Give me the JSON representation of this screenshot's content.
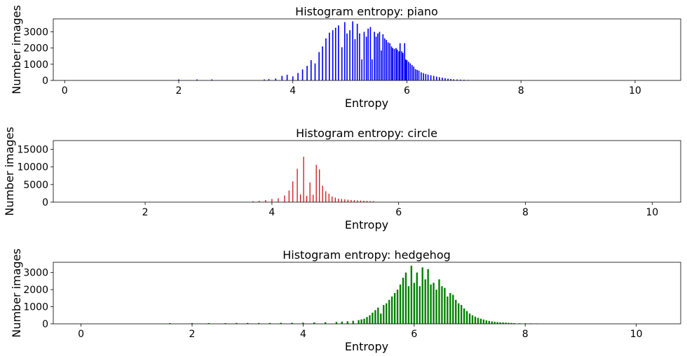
{
  "figure": {
    "colors": {
      "piano": "#0000ff",
      "circle": "#cc0000",
      "hedgehog": "#008000"
    }
  },
  "chart_data": [
    {
      "type": "bar",
      "title": "Histogram entropy: piano",
      "xlabel": "Entropy",
      "ylabel": "Number images",
      "xlim": [
        -0.2,
        10.8
      ],
      "ylim": [
        0,
        3800
      ],
      "xticks": [
        0,
        2,
        4,
        6,
        8,
        10
      ],
      "yticks": [
        0,
        1000,
        2000,
        3000
      ],
      "color": "#0000ff",
      "bar_width": 0.02,
      "x": [
        2.0,
        2.32,
        2.58,
        3.5,
        3.58,
        3.7,
        3.81,
        3.9,
        4.0,
        4.09,
        4.17,
        4.25,
        4.32,
        4.39,
        4.46,
        4.52,
        4.58,
        4.64,
        4.7,
        4.75,
        4.8,
        4.86,
        4.91,
        4.95,
        5.0,
        5.05,
        5.09,
        5.13,
        5.17,
        5.21,
        5.25,
        5.29,
        5.32,
        5.36,
        5.39,
        5.43,
        5.46,
        5.49,
        5.52,
        5.55,
        5.58,
        5.61,
        5.64,
        5.67,
        5.7,
        5.73,
        5.75,
        5.78,
        5.81,
        5.83,
        5.86,
        5.88,
        5.91,
        5.93,
        5.96,
        5.98,
        6.0,
        6.03,
        6.06,
        6.09,
        6.12,
        6.15,
        6.18,
        6.21,
        6.25,
        6.29,
        6.33,
        6.37,
        6.42,
        6.47,
        6.52,
        6.57,
        6.62,
        6.67,
        6.72,
        6.77,
        6.82,
        6.88,
        6.94,
        7.0,
        7.07
      ],
      "values": [
        60,
        60,
        60,
        60,
        80,
        120,
        280,
        350,
        250,
        460,
        680,
        900,
        1250,
        1050,
        1750,
        2100,
        2600,
        2950,
        3100,
        3250,
        3400,
        2050,
        3600,
        2900,
        3100,
        3650,
        2550,
        3500,
        2900,
        1300,
        3000,
        2700,
        3200,
        3300,
        1300,
        3000,
        2700,
        2900,
        3000,
        1850,
        2850,
        2600,
        2500,
        2350,
        2300,
        2100,
        2000,
        1950,
        2000,
        1900,
        1800,
        2300,
        1800,
        1700,
        2300,
        1300,
        1250,
        1150,
        1050,
        950,
        850,
        700,
        650,
        600,
        500,
        450,
        400,
        360,
        320,
        280,
        240,
        200,
        170,
        140,
        110,
        90,
        70,
        60,
        50,
        40,
        30
      ]
    },
    {
      "type": "bar",
      "title": "Histogram entropy: circle",
      "xlabel": "Entropy",
      "ylabel": "Number images",
      "xlim": [
        0.55,
        10.45
      ],
      "ylim": [
        0,
        17500
      ],
      "xticks": [
        2,
        4,
        6,
        8,
        10
      ],
      "yticks": [
        0,
        5000,
        10000,
        15000
      ],
      "color": "#cc0000",
      "bar_width": 0.012,
      "x": [
        3.7,
        3.8,
        3.9,
        4.0,
        4.1,
        4.2,
        4.27,
        4.33,
        4.4,
        4.45,
        4.5,
        4.55,
        4.6,
        4.65,
        4.7,
        4.75,
        4.8,
        4.85,
        4.9,
        4.95,
        5.0,
        5.05,
        5.1,
        5.15,
        5.2,
        5.25,
        5.3,
        5.35,
        5.4,
        5.45,
        5.5,
        5.55,
        5.6
      ],
      "values": [
        250,
        350,
        600,
        900,
        1100,
        1900,
        3300,
        5900,
        9500,
        2200,
        12900,
        1800,
        5600,
        2100,
        10600,
        9300,
        4700,
        3100,
        2400,
        1600,
        1300,
        1000,
        900,
        800,
        700,
        600,
        550,
        500,
        450,
        400,
        350,
        300,
        250
      ]
    },
    {
      "type": "bar",
      "title": "Histogram entropy: hedgehog",
      "xlabel": "Entropy",
      "ylabel": "Number images",
      "xlim": [
        -0.5,
        10.8
      ],
      "ylim": [
        0,
        3600
      ],
      "xticks": [
        0,
        2,
        4,
        6,
        8,
        10
      ],
      "yticks": [
        0,
        1000,
        2000,
        3000
      ],
      "color": "#008000",
      "bar_width": 0.03,
      "x": [
        1.6,
        2.0,
        2.3,
        2.6,
        2.8,
        3.0,
        3.2,
        3.4,
        3.6,
        3.8,
        4.0,
        4.2,
        4.4,
        4.6,
        4.7,
        4.8,
        4.9,
        5.0,
        5.05,
        5.1,
        5.15,
        5.2,
        5.25,
        5.3,
        5.35,
        5.4,
        5.45,
        5.5,
        5.55,
        5.6,
        5.65,
        5.7,
        5.75,
        5.8,
        5.85,
        5.9,
        5.95,
        6.0,
        6.05,
        6.1,
        6.15,
        6.2,
        6.25,
        6.3,
        6.35,
        6.4,
        6.45,
        6.5,
        6.55,
        6.6,
        6.65,
        6.7,
        6.75,
        6.8,
        6.85,
        6.9,
        6.95,
        7.0,
        7.05,
        7.1,
        7.15,
        7.2,
        7.25,
        7.3,
        7.35,
        7.4,
        7.45,
        7.5,
        7.55,
        7.6,
        7.65,
        7.7,
        7.75,
        7.8,
        7.9,
        8.0,
        8.1,
        8.2
      ],
      "values": [
        40,
        40,
        40,
        40,
        50,
        50,
        50,
        50,
        60,
        60,
        70,
        80,
        90,
        110,
        130,
        150,
        180,
        220,
        260,
        300,
        400,
        500,
        650,
        800,
        950,
        600,
        1100,
        1200,
        1400,
        1600,
        1800,
        2000,
        2300,
        2700,
        3000,
        2200,
        3400,
        2400,
        3000,
        2200,
        3300,
        2600,
        3200,
        2300,
        2400,
        2000,
        2600,
        2200,
        2100,
        1600,
        1800,
        1700,
        1400,
        1200,
        1100,
        900,
        750,
        600,
        500,
        420,
        350,
        300,
        250,
        200,
        170,
        140,
        120,
        100,
        90,
        80,
        70,
        60,
        50,
        40,
        30,
        30,
        25,
        20
      ]
    }
  ]
}
